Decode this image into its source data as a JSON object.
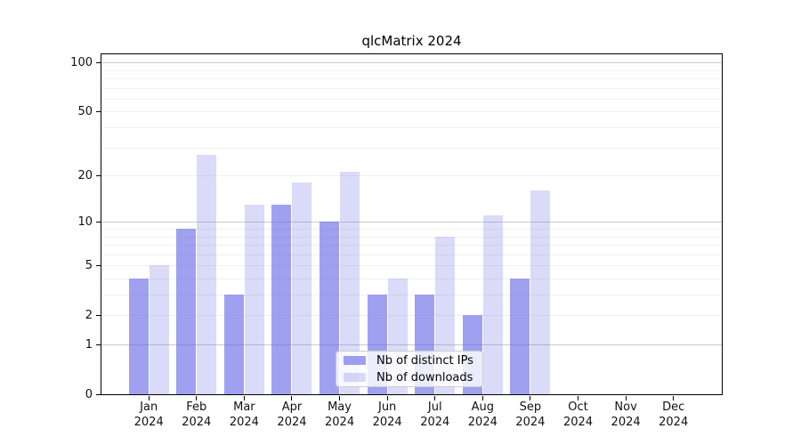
{
  "page": {
    "background": "#ffffff"
  },
  "chart_data": {
    "type": "bar",
    "title": "qlcMatrix 2024",
    "year_label": "2024",
    "categories": [
      "Jan",
      "Feb",
      "Mar",
      "Apr",
      "May",
      "Jun",
      "Jul",
      "Aug",
      "Sep",
      "Oct",
      "Nov",
      "Dec"
    ],
    "series": [
      {
        "name": "Nb of distinct IPs",
        "color": "rgba(102,102,230,0.62)",
        "values": [
          4,
          9,
          3,
          13,
          10,
          3,
          3,
          2,
          4,
          0,
          0,
          0
        ]
      },
      {
        "name": "Nb of downloads",
        "color": "rgba(102,102,230,0.24)",
        "values": [
          5,
          27,
          13,
          18,
          21,
          4,
          8,
          11,
          16,
          0,
          0,
          0
        ]
      }
    ],
    "y_scale": "log1p",
    "ylim": [
      0,
      113
    ],
    "y_ticks": [
      0,
      1,
      2,
      5,
      10,
      20,
      50,
      100
    ],
    "grid": {
      "major_values": [
        1,
        10,
        100
      ],
      "minor_values": [
        2,
        3,
        4,
        5,
        6,
        7,
        8,
        9,
        20,
        30,
        40,
        50,
        60,
        70,
        80,
        90
      ],
      "major_color": "#c9c9c9",
      "minor_color": "#f0f0f0"
    },
    "legend_position": "lower-center",
    "axis_color": "#000000"
  }
}
